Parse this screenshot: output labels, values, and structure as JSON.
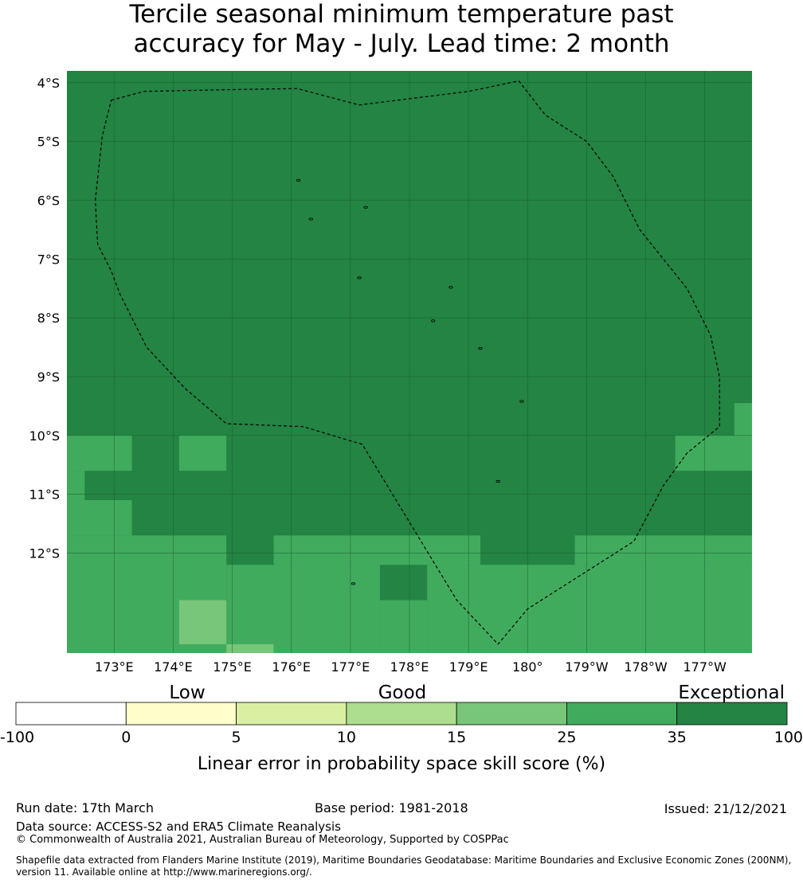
{
  "title": {
    "line1": "Tercile seasonal minimum temperature past",
    "line2": "accuracy for May - July. Lead time: 2 month"
  },
  "map": {
    "lat_labels": [
      "4°S",
      "5°S",
      "6°S",
      "7°S",
      "8°S",
      "9°S",
      "10°S",
      "11°S",
      "12°S"
    ],
    "lon_labels": [
      "173°E",
      "174°E",
      "175°E",
      "176°E",
      "177°E",
      "178°E",
      "179°E",
      "180°",
      "179°W",
      "178°W",
      "177°W"
    ],
    "lat_range": [
      -13.7,
      -3.8
    ],
    "lon_range": [
      172.2,
      183.8
    ],
    "base_category": "35-100",
    "colors": {
      "-100-0": "#ffffff",
      "0-5": "#ffffcc",
      "5-10": "#d9f0a3",
      "10-15": "#addd8e",
      "15-25": "#78c679",
      "25-35": "#41ab5d",
      "35-100": "#238443"
    },
    "cells": [
      {
        "lon": [
          183.5,
          183.8
        ],
        "lat": [
          -10.0,
          -9.45
        ],
        "cat": "25-35"
      },
      {
        "lon": [
          172.2,
          173.3
        ],
        "lat": [
          -10.6,
          -10.0
        ],
        "cat": "25-35"
      },
      {
        "lon": [
          174.1,
          174.9
        ],
        "lat": [
          -10.6,
          -10.0
        ],
        "cat": "25-35"
      },
      {
        "lon": [
          182.5,
          183.8
        ],
        "lat": [
          -10.6,
          -10.0
        ],
        "cat": "25-35"
      },
      {
        "lon": [
          172.2,
          172.5
        ],
        "lat": [
          -11.1,
          -10.6
        ],
        "cat": "25-35"
      },
      {
        "lon": [
          172.2,
          173.3
        ],
        "lat": [
          -11.7,
          -11.1
        ],
        "cat": "25-35"
      },
      {
        "lon": [
          172.2,
          174.9
        ],
        "lat": [
          -13.7,
          -11.7
        ],
        "cat": "25-35"
      },
      {
        "lon": [
          175.7,
          179.2
        ],
        "lat": [
          -12.2,
          -11.7
        ],
        "cat": "25-35"
      },
      {
        "lon": [
          174.9,
          177.5
        ],
        "lat": [
          -13.7,
          -12.2
        ],
        "cat": "25-35"
      },
      {
        "lon": [
          178.3,
          183.8
        ],
        "lat": [
          -13.7,
          -12.2
        ],
        "cat": "25-35"
      },
      {
        "lon": [
          180.8,
          183.8
        ],
        "lat": [
          -12.2,
          -11.7
        ],
        "cat": "25-35"
      },
      {
        "lon": [
          177.5,
          178.3
        ],
        "lat": [
          -13.7,
          -12.8
        ],
        "cat": "25-35"
      },
      {
        "lon": [
          174.1,
          174.9
        ],
        "lat": [
          -13.55,
          -12.8
        ],
        "cat": "15-25"
      },
      {
        "lon": [
          174.9,
          175.7
        ],
        "lat": [
          -13.7,
          -13.55
        ],
        "cat": "15-25"
      }
    ],
    "eez_boundary": [
      [
        172.95,
        -4.3
      ],
      [
        173.5,
        -4.15
      ],
      [
        174.9,
        -4.12
      ],
      [
        176.1,
        -4.1
      ],
      [
        177.15,
        -4.38
      ],
      [
        179.0,
        -4.15
      ],
      [
        179.85,
        -3.97
      ],
      [
        180.3,
        -4.55
      ],
      [
        181.0,
        -5.0
      ],
      [
        181.45,
        -5.6
      ],
      [
        181.9,
        -6.5
      ],
      [
        182.7,
        -7.5
      ],
      [
        183.1,
        -8.3
      ],
      [
        183.25,
        -9.0
      ],
      [
        183.25,
        -9.85
      ],
      [
        182.7,
        -10.3
      ],
      [
        182.3,
        -10.85
      ],
      [
        181.8,
        -11.8
      ],
      [
        180.0,
        -12.95
      ],
      [
        179.5,
        -13.55
      ],
      [
        178.8,
        -12.8
      ],
      [
        177.2,
        -10.15
      ],
      [
        176.2,
        -9.85
      ],
      [
        174.9,
        -9.8
      ],
      [
        174.2,
        -9.2
      ],
      [
        173.55,
        -8.5
      ],
      [
        173.1,
        -7.6
      ],
      [
        172.95,
        -7.2
      ],
      [
        172.72,
        -6.75
      ],
      [
        172.68,
        -6.0
      ],
      [
        172.8,
        -4.9
      ]
    ],
    "islands": [
      [
        176.12,
        -5.66
      ],
      [
        176.33,
        -6.32
      ],
      [
        177.26,
        -6.12
      ],
      [
        177.15,
        -7.32
      ],
      [
        178.7,
        -7.48
      ],
      [
        178.4,
        -8.05
      ],
      [
        179.2,
        -8.52
      ],
      [
        179.9,
        -9.42
      ],
      [
        179.5,
        -10.78
      ],
      [
        177.05,
        -12.52
      ]
    ]
  },
  "colorbar": {
    "category_labels": [
      "Low",
      "Good",
      "Exceptional"
    ],
    "ticks": [
      "-100",
      "0",
      "5",
      "10",
      "15",
      "25",
      "35",
      "100"
    ],
    "segments": [
      {
        "range": "-100-0",
        "color": "#ffffff"
      },
      {
        "range": "0-5",
        "color": "#ffffcc"
      },
      {
        "range": "5-10",
        "color": "#d9f0a3"
      },
      {
        "range": "10-15",
        "color": "#addd8e"
      },
      {
        "range": "15-25",
        "color": "#78c679"
      },
      {
        "range": "25-35",
        "color": "#41ab5d"
      },
      {
        "range": "35-100",
        "color": "#238443"
      }
    ],
    "label": "Linear error in probability space skill score (%)"
  },
  "footer": {
    "run_date": "Run date: 17th March",
    "base_period": "Base period: 1981-2018",
    "issued": "Issued: 21/12/2021",
    "data_source": "Data source: ACCESS-S2 and ERA5 Climate Reanalysis",
    "copyright": "© Commonwealth of Australia 2021, Australian Bureau of Meteorology, Supported by COSPPac",
    "shapefile_line1": "Shapefile data extracted from Flanders Marine Institute (2019), Maritime Boundaries Geodatabase: Maritime Boundaries and Exclusive Economic Zones (200NM),",
    "shapefile_line2": "version 11. Available online at http://www.marineregions.org/."
  }
}
